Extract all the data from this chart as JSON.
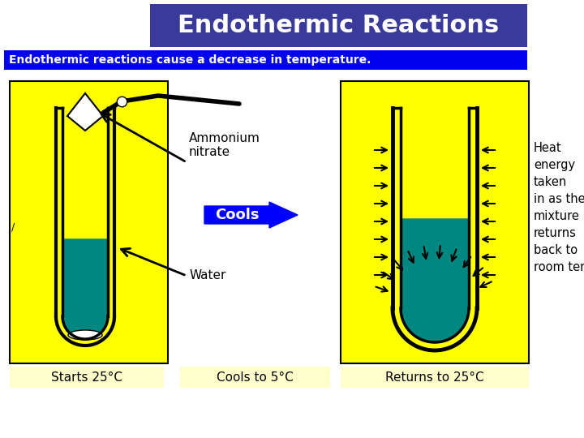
{
  "title": "Endothermic Reactions",
  "subtitle": "Endothermic reactions cause a decrease in temperature.",
  "title_bg": "#3a3a9a",
  "subtitle_bg": "#0000ee",
  "title_color": "#ffffff",
  "subtitle_color": "#ffffff",
  "bg_color": "#ffffff",
  "yellow_bg": "#ffff00",
  "teal_color": "#008880",
  "label1": "Ammonium\nnitrate",
  "label2": "Water",
  "label3": "Cools",
  "label4": "Heat\nenergy\ntaken\nin as the\nmixture\nreturns\nback to\nroom temp.",
  "bottom1": "Starts 25°C",
  "bottom2": "Cools to 5°C",
  "bottom3": "Returns to 25°C",
  "bottom_bg": "#ffffcc"
}
